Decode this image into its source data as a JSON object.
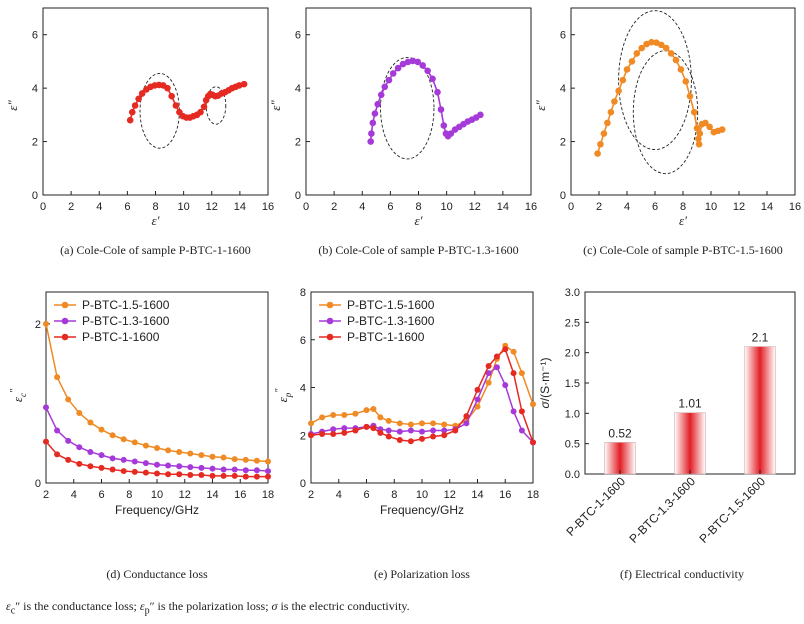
{
  "footnote": {
    "conductance_symbol": "ε",
    "conductance_sub": "c",
    "conductance_text": "″ is the conductance loss; ",
    "polarization_symbol": "ε",
    "polarization_sub": "p",
    "polarization_text": "″ is the polarization loss; ",
    "sigma_symbol": "σ",
    "sigma_text": " is the electric conductivity."
  },
  "colors": {
    "red": "#e52a22",
    "purple": "#a63ad8",
    "orange": "#f08a24"
  },
  "chart_data": [
    {
      "id": "a",
      "type": "scatter",
      "caption": "(a) Cole-Cole of sample P-BTC-1-1600",
      "xlabel": "ε′",
      "ylabel": "ε″",
      "xlim": [
        0,
        16
      ],
      "ylim": [
        0,
        7
      ],
      "xticks": [
        0,
        2,
        4,
        6,
        8,
        10,
        12,
        14,
        16
      ],
      "yticks": [
        0,
        2,
        4,
        6
      ],
      "series": [
        {
          "color": "red",
          "x": [
            6.2,
            6.35,
            6.55,
            6.8,
            7.05,
            7.35,
            7.65,
            7.95,
            8.25,
            8.55,
            8.85,
            9.15,
            9.45,
            9.7,
            9.95,
            10.2,
            10.45,
            10.7,
            10.95,
            11.2,
            11.45,
            11.6,
            11.75,
            11.9,
            12.05,
            12.25,
            12.45,
            12.7,
            12.95,
            13.2,
            13.45,
            13.7,
            13.95,
            14.3
          ],
          "y": [
            2.8,
            3.1,
            3.35,
            3.6,
            3.8,
            3.95,
            4.05,
            4.1,
            4.12,
            4.1,
            4.0,
            3.7,
            3.35,
            3.1,
            2.95,
            2.9,
            2.9,
            2.95,
            3.0,
            3.1,
            3.3,
            3.55,
            3.7,
            3.78,
            3.75,
            3.7,
            3.72,
            3.8,
            3.85,
            3.92,
            4.0,
            4.05,
            4.1,
            4.15
          ]
        }
      ],
      "circles": [
        {
          "cx": 8.3,
          "cy": 3.15,
          "r": 1.4
        },
        {
          "cx": 12.3,
          "cy": 3.35,
          "r": 0.7
        }
      ]
    },
    {
      "id": "b",
      "type": "scatter",
      "caption": "(b) Cole-Cole of sample P-BTC-1.3-1600",
      "xlabel": "ε′",
      "ylabel": "ε″",
      "xlim": [
        0,
        16
      ],
      "ylim": [
        0,
        7
      ],
      "xticks": [
        0,
        2,
        4,
        6,
        8,
        10,
        12,
        14,
        16
      ],
      "yticks": [
        0,
        2,
        4,
        6
      ],
      "series": [
        {
          "color": "purple",
          "x": [
            4.6,
            4.65,
            4.75,
            4.9,
            5.1,
            5.35,
            5.6,
            5.9,
            6.2,
            6.55,
            6.9,
            7.25,
            7.6,
            7.95,
            8.3,
            8.65,
            9.0,
            9.35,
            9.6,
            9.8,
            9.95,
            10.1,
            10.3,
            10.6,
            10.9,
            11.2,
            11.5,
            11.8,
            12.1,
            12.4
          ],
          "y": [
            2.0,
            2.3,
            2.7,
            3.05,
            3.4,
            3.75,
            4.05,
            4.3,
            4.55,
            4.75,
            4.9,
            4.98,
            5.02,
            4.98,
            4.85,
            4.65,
            4.35,
            3.85,
            3.2,
            2.6,
            2.3,
            2.2,
            2.3,
            2.45,
            2.55,
            2.65,
            2.75,
            2.82,
            2.9,
            3.0
          ]
        }
      ],
      "circles": [
        {
          "cx": 7.2,
          "cy": 3.25,
          "r": 1.9
        }
      ]
    },
    {
      "id": "c",
      "type": "scatter",
      "caption": "(c) Cole-Cole of sample P-BTC-1.5-1600",
      "xlabel": "ε′",
      "ylabel": "ε″",
      "xlim": [
        0,
        16
      ],
      "ylim": [
        0,
        7
      ],
      "xticks": [
        0,
        2,
        4,
        6,
        8,
        10,
        12,
        14,
        16
      ],
      "yticks": [
        0,
        2,
        4,
        6
      ],
      "series": [
        {
          "color": "orange",
          "x": [
            1.9,
            2.1,
            2.35,
            2.6,
            2.85,
            3.1,
            3.4,
            3.7,
            4.0,
            4.35,
            4.7,
            5.05,
            5.4,
            5.75,
            6.1,
            6.45,
            6.8,
            7.15,
            7.5,
            7.85,
            8.2,
            8.5,
            8.8,
            9.0,
            9.1,
            9.15,
            9.2,
            9.35,
            9.6,
            9.9,
            10.2,
            10.5,
            10.8
          ],
          "y": [
            1.55,
            1.9,
            2.3,
            2.7,
            3.1,
            3.5,
            3.9,
            4.3,
            4.7,
            5.0,
            5.3,
            5.5,
            5.65,
            5.72,
            5.7,
            5.62,
            5.5,
            5.3,
            5.05,
            4.7,
            4.25,
            3.7,
            3.1,
            2.5,
            2.1,
            1.9,
            2.3,
            2.65,
            2.7,
            2.55,
            2.35,
            2.4,
            2.45
          ]
        }
      ],
      "circles": [
        {
          "cx": 6.0,
          "cy": 4.3,
          "r": 2.6
        },
        {
          "cx": 6.75,
          "cy": 3.1,
          "r": 2.3
        }
      ]
    },
    {
      "id": "d",
      "type": "line",
      "caption": "(d) Conductance loss",
      "xlabel": "Frequency/GHz",
      "ylabel_symbol": "ε",
      "ylabel_sub": "c",
      "ylabel_sup": "″",
      "xlim": [
        2,
        18
      ],
      "ylim": [
        0,
        2.4
      ],
      "xticks": [
        2,
        4,
        6,
        8,
        10,
        12,
        14,
        16,
        18
      ],
      "yticks": [
        0,
        2
      ],
      "legend": "top-left",
      "series": [
        {
          "name": "P-BTC-1.5-1600",
          "color": "orange",
          "x": [
            2,
            2.8,
            3.6,
            4.4,
            5.2,
            6.0,
            6.8,
            7.6,
            8.4,
            9.2,
            10.0,
            10.8,
            11.6,
            12.4,
            13.2,
            14.0,
            14.8,
            15.6,
            16.4,
            17.2,
            18.0
          ],
          "y": [
            2.0,
            1.33,
            1.05,
            0.88,
            0.76,
            0.67,
            0.6,
            0.55,
            0.51,
            0.47,
            0.44,
            0.41,
            0.39,
            0.37,
            0.35,
            0.33,
            0.32,
            0.3,
            0.29,
            0.28,
            0.27
          ]
        },
        {
          "name": "P-BTC-1.3-1600",
          "color": "purple",
          "x": [
            2,
            2.8,
            3.6,
            4.4,
            5.2,
            6.0,
            6.8,
            7.6,
            8.4,
            9.2,
            10.0,
            10.8,
            11.6,
            12.4,
            13.2,
            14.0,
            14.8,
            15.6,
            16.4,
            17.2,
            18.0
          ],
          "y": [
            0.95,
            0.66,
            0.53,
            0.45,
            0.39,
            0.35,
            0.31,
            0.29,
            0.27,
            0.25,
            0.23,
            0.22,
            0.21,
            0.2,
            0.19,
            0.18,
            0.17,
            0.17,
            0.16,
            0.16,
            0.15
          ]
        },
        {
          "name": "P-BTC-1-1600",
          "color": "red",
          "x": [
            2,
            2.8,
            3.6,
            4.4,
            5.2,
            6.0,
            6.8,
            7.6,
            8.4,
            9.2,
            10.0,
            10.8,
            11.6,
            12.4,
            13.2,
            14.0,
            14.8,
            15.6,
            16.4,
            17.2,
            18.0
          ],
          "y": [
            0.52,
            0.36,
            0.29,
            0.24,
            0.21,
            0.19,
            0.17,
            0.15,
            0.14,
            0.13,
            0.12,
            0.11,
            0.11,
            0.1,
            0.1,
            0.09,
            0.09,
            0.09,
            0.08,
            0.08,
            0.08
          ]
        }
      ]
    },
    {
      "id": "e",
      "type": "line",
      "caption": "(e) Polarization loss",
      "xlabel": "Frequency/GHz",
      "ylabel_symbol": "ε",
      "ylabel_sub": "p",
      "ylabel_sup": "″",
      "xlim": [
        2,
        18
      ],
      "ylim": [
        0,
        8
      ],
      "xticks": [
        2,
        4,
        6,
        8,
        10,
        12,
        14,
        16,
        18
      ],
      "yticks": [
        0,
        2,
        4,
        6,
        8
      ],
      "legend": "top-left",
      "series": [
        {
          "name": "P-BTC-1.5-1600",
          "color": "orange",
          "x": [
            2,
            2.8,
            3.6,
            4.4,
            5.2,
            6.0,
            6.5,
            7.0,
            7.6,
            8.4,
            9.2,
            10.0,
            10.8,
            11.6,
            12.4,
            13.2,
            14.0,
            14.8,
            15.4,
            16.0,
            16.6,
            17.2,
            18.0
          ],
          "y": [
            2.5,
            2.75,
            2.85,
            2.85,
            2.9,
            3.05,
            3.1,
            2.75,
            2.6,
            2.5,
            2.45,
            2.5,
            2.5,
            2.45,
            2.4,
            2.6,
            3.2,
            4.2,
            5.2,
            5.75,
            5.5,
            4.6,
            3.3
          ]
        },
        {
          "name": "P-BTC-1.3-1600",
          "color": "purple",
          "x": [
            2,
            2.8,
            3.6,
            4.4,
            5.2,
            6.0,
            6.5,
            7.0,
            7.6,
            8.4,
            9.2,
            10.0,
            10.8,
            11.6,
            12.4,
            13.2,
            14.0,
            14.8,
            15.4,
            16.0,
            16.6,
            17.2,
            18.0
          ],
          "y": [
            2.05,
            2.15,
            2.25,
            2.3,
            2.3,
            2.35,
            2.4,
            2.25,
            2.2,
            2.15,
            2.2,
            2.15,
            2.2,
            2.2,
            2.25,
            2.5,
            3.5,
            4.6,
            4.85,
            4.1,
            3.0,
            2.2,
            1.7
          ]
        },
        {
          "name": "P-BTC-1-1600",
          "color": "red",
          "x": [
            2,
            2.8,
            3.6,
            4.4,
            5.2,
            6.0,
            6.5,
            7.0,
            7.6,
            8.4,
            9.2,
            10.0,
            10.8,
            11.6,
            12.4,
            13.2,
            14.0,
            14.8,
            15.4,
            16.0,
            16.6,
            17.2,
            18.0
          ],
          "y": [
            2.0,
            2.05,
            2.05,
            2.1,
            2.2,
            2.35,
            2.3,
            2.1,
            1.95,
            1.8,
            1.75,
            1.85,
            1.95,
            2.0,
            2.2,
            2.8,
            3.9,
            4.9,
            5.3,
            5.6,
            4.6,
            3.0,
            1.7
          ]
        }
      ]
    },
    {
      "id": "f",
      "type": "bar",
      "caption": "(f) Electrical conductivity",
      "ylabel_symbol": "σ",
      "ylabel_text": "/(S·m⁻¹)",
      "ylim": [
        0,
        3.0
      ],
      "yticks": [
        "0.0",
        "0.5",
        "1.0",
        "1.5",
        "2.0",
        "2.5",
        "3.0"
      ],
      "categories": [
        "P-BTC-1-1600",
        "P-BTC-1.3-1600",
        "P-BTC-1.5-1600"
      ],
      "values": [
        0.52,
        1.01,
        2.1
      ],
      "labels": [
        "0.52",
        "1.01",
        "2.1"
      ]
    }
  ]
}
